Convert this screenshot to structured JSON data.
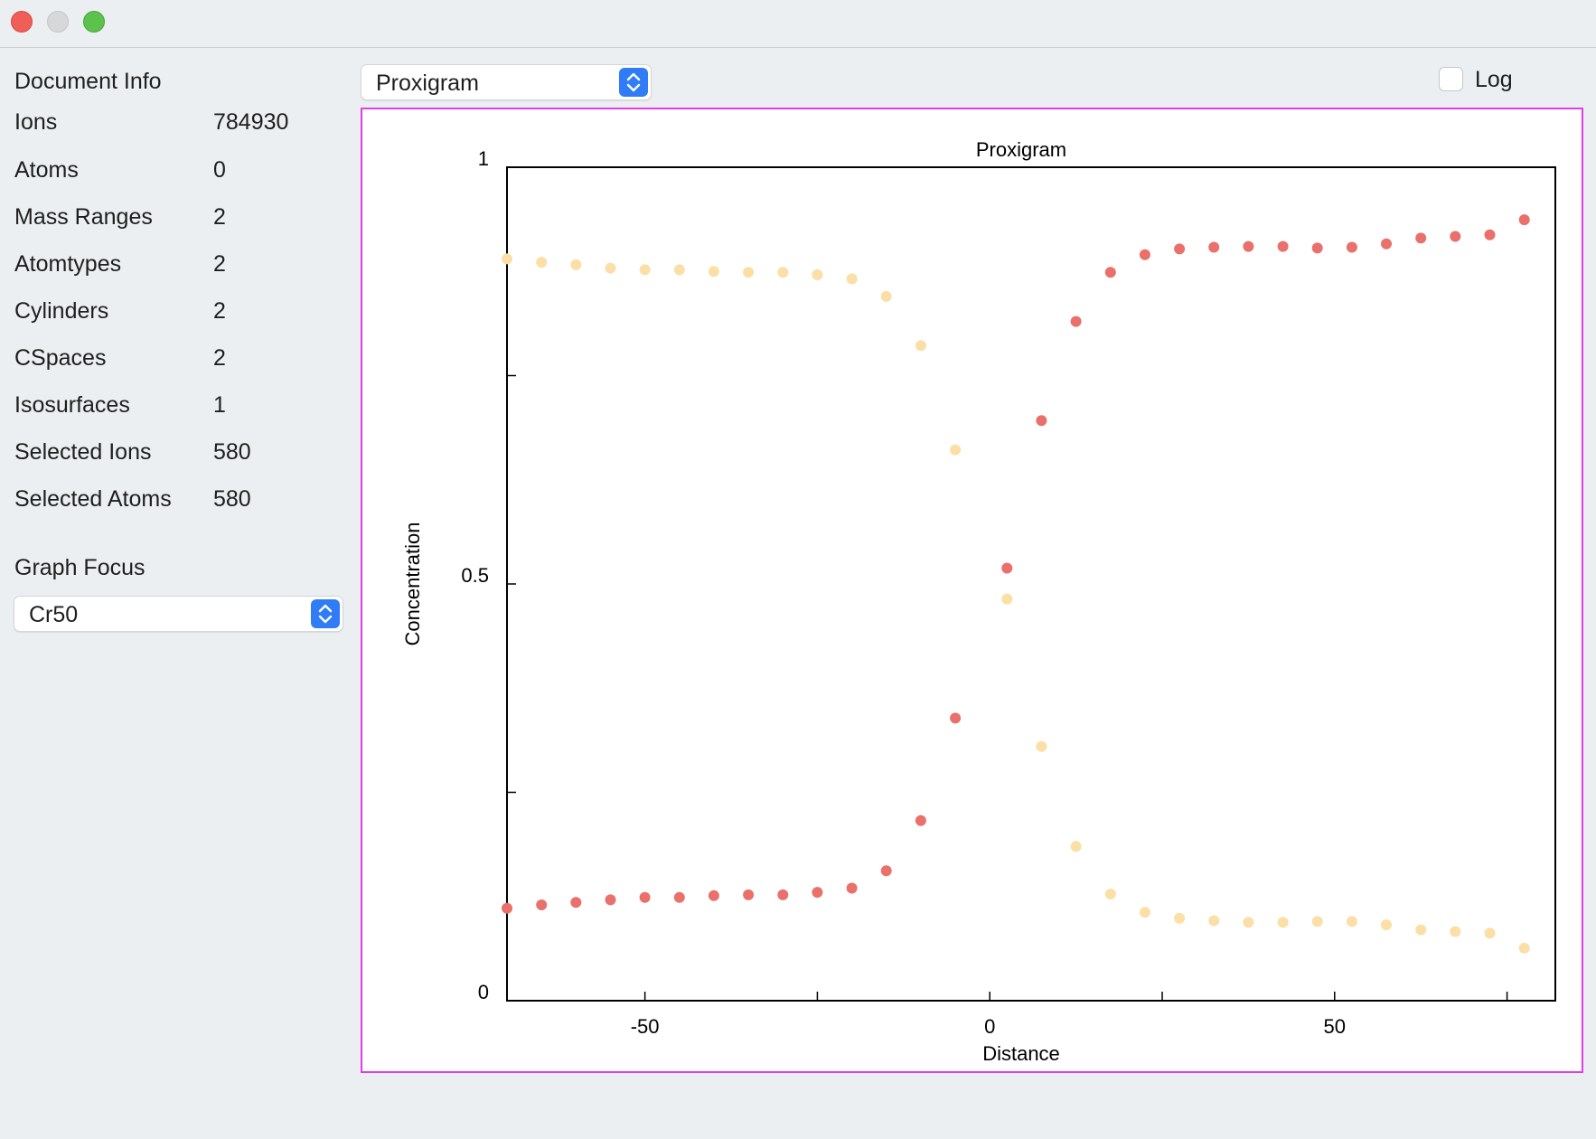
{
  "document_info": {
    "title": "Document Info",
    "rows": [
      {
        "label": "Ions",
        "value": "784930"
      },
      {
        "label": "Atoms",
        "value": "0"
      },
      {
        "label": "Mass Ranges",
        "value": "2"
      },
      {
        "label": "Atomtypes",
        "value": "2"
      },
      {
        "label": "Cylinders",
        "value": "2"
      },
      {
        "label": "CSpaces",
        "value": "2"
      },
      {
        "label": "Isosurfaces",
        "value": "1"
      },
      {
        "label": "Selected Ions",
        "value": "580"
      },
      {
        "label": "Selected Atoms",
        "value": "580"
      }
    ]
  },
  "graph_focus": {
    "title": "Graph Focus",
    "selected": "Cr50"
  },
  "graph_type": {
    "selected": "Proxigram"
  },
  "log_toggle": {
    "label": "Log",
    "checked": false
  },
  "colors": {
    "plot_border": "#e23ce8",
    "series_1": "#e9706b",
    "series_2": "#fbdfa6",
    "stepper": "#2f7cf6"
  },
  "chart_data": {
    "type": "scatter",
    "title": "Proxigram",
    "xlabel": "Distance",
    "ylabel": "Concentration",
    "xlim": [
      -70,
      82
    ],
    "ylim": [
      0,
      1
    ],
    "x_ticks": [
      -50,
      0,
      50
    ],
    "y_ticks": [
      0,
      0.5,
      1
    ],
    "grid": false,
    "series": [
      {
        "color": "#e9706b",
        "points": [
          [
            -70,
            0.111
          ],
          [
            -65,
            0.115
          ],
          [
            -60,
            0.118
          ],
          [
            -55,
            0.121
          ],
          [
            -50,
            0.124
          ],
          [
            -45,
            0.124
          ],
          [
            -40,
            0.126
          ],
          [
            -35,
            0.127
          ],
          [
            -30,
            0.127
          ],
          [
            -25,
            0.13
          ],
          [
            -20,
            0.135
          ],
          [
            -15,
            0.156
          ],
          [
            -10,
            0.216
          ],
          [
            -5,
            0.339
          ],
          [
            2.5,
            0.519
          ],
          [
            7.5,
            0.696
          ],
          [
            12.5,
            0.815
          ],
          [
            17.5,
            0.874
          ],
          [
            22.5,
            0.895
          ],
          [
            27.5,
            0.902
          ],
          [
            32.5,
            0.904
          ],
          [
            37.5,
            0.905
          ],
          [
            42.5,
            0.905
          ],
          [
            47.5,
            0.903
          ],
          [
            52.5,
            0.904
          ],
          [
            57.5,
            0.908
          ],
          [
            62.5,
            0.915
          ],
          [
            67.5,
            0.917
          ],
          [
            72.5,
            0.919
          ],
          [
            77.5,
            0.937
          ]
        ]
      },
      {
        "color": "#fbdfa6",
        "points": [
          [
            -70,
            0.89
          ],
          [
            -65,
            0.886
          ],
          [
            -60,
            0.883
          ],
          [
            -55,
            0.879
          ],
          [
            -50,
            0.877
          ],
          [
            -45,
            0.877
          ],
          [
            -40,
            0.875
          ],
          [
            -35,
            0.874
          ],
          [
            -30,
            0.874
          ],
          [
            -25,
            0.871
          ],
          [
            -20,
            0.866
          ],
          [
            -15,
            0.845
          ],
          [
            -10,
            0.786
          ],
          [
            -5,
            0.661
          ],
          [
            2.5,
            0.482
          ],
          [
            7.5,
            0.305
          ],
          [
            12.5,
            0.185
          ],
          [
            17.5,
            0.128
          ],
          [
            22.5,
            0.106
          ],
          [
            27.5,
            0.099
          ],
          [
            32.5,
            0.096
          ],
          [
            37.5,
            0.094
          ],
          [
            42.5,
            0.094
          ],
          [
            47.5,
            0.095
          ],
          [
            52.5,
            0.095
          ],
          [
            57.5,
            0.091
          ],
          [
            62.5,
            0.085
          ],
          [
            67.5,
            0.083
          ],
          [
            72.5,
            0.081
          ],
          [
            77.5,
            0.063
          ]
        ]
      }
    ]
  }
}
